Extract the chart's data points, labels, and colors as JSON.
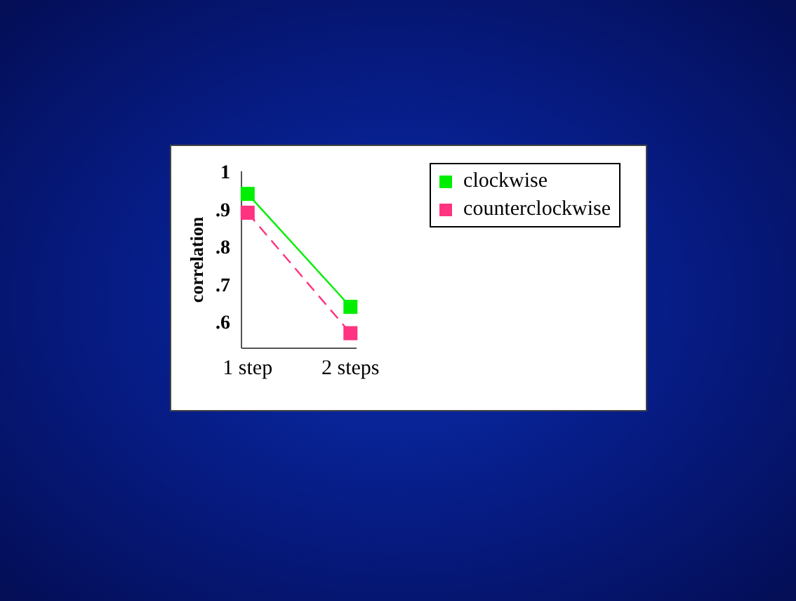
{
  "chart_data": {
    "type": "line",
    "ylabel": "correlation",
    "categories": [
      "1 step",
      "2 steps"
    ],
    "series": [
      {
        "name": "clockwise",
        "color": "#00ee00",
        "values": [
          0.94,
          0.64
        ],
        "line_style": "solid"
      },
      {
        "name": "counterclockwise",
        "color": "#ff3380",
        "values": [
          0.89,
          0.57
        ],
        "line_style": "dashed"
      }
    ],
    "ylim": [
      0.53,
      1.0
    ],
    "yticks": [
      {
        "value": 0.6,
        "label": ".6"
      },
      {
        "value": 0.7,
        "label": ".7"
      },
      {
        "value": 0.8,
        "label": ".8"
      },
      {
        "value": 0.9,
        "label": ".9"
      },
      1
    ],
    "marker": "square",
    "grid": false,
    "legend": "top right"
  }
}
